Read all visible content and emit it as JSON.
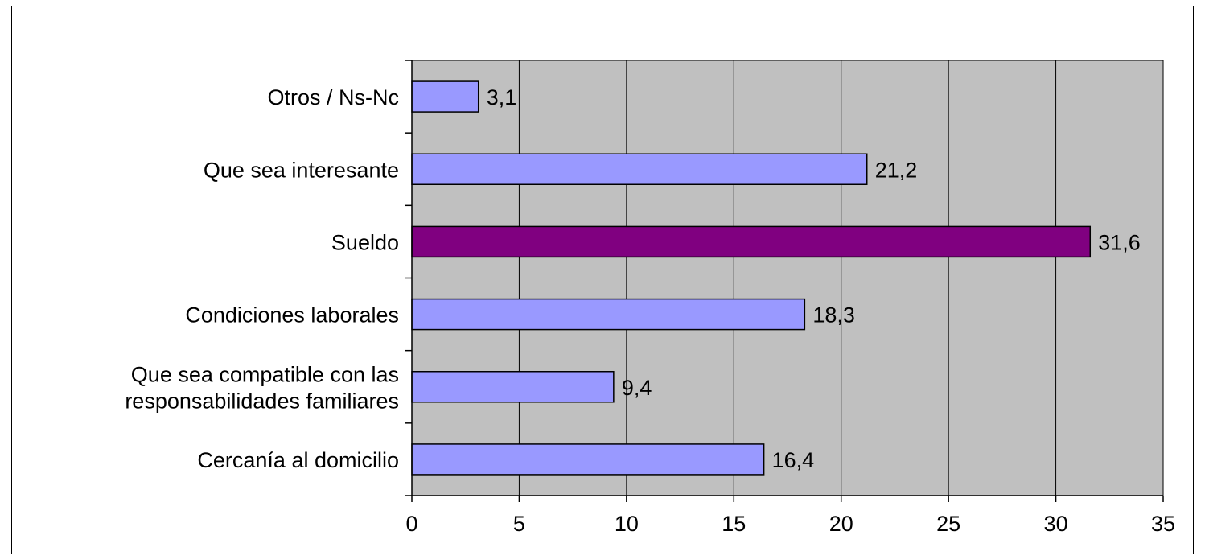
{
  "chart_data": {
    "type": "bar",
    "orientation": "horizontal",
    "title": "",
    "xlabel": "",
    "ylabel": "",
    "categories": [
      "Otros / Ns-Nc",
      "Que sea interesante",
      "Sueldo",
      "Condiciones laborales",
      "Que sea compatible con las responsabilidades familiares",
      "Cercanía al domicilio"
    ],
    "category_lines": [
      [
        "Otros / Ns-Nc"
      ],
      [
        "Que sea interesante"
      ],
      [
        "Sueldo"
      ],
      [
        "Condiciones laborales"
      ],
      [
        "Que sea compatible con las",
        "responsabilidades familiares"
      ],
      [
        "Cercanía al domicilio"
      ]
    ],
    "values": [
      3.1,
      21.2,
      31.6,
      18.3,
      9.4,
      16.4
    ],
    "data_labels": [
      "3,1",
      "21,2",
      "31,6",
      "18,3",
      "9,4",
      "16,4"
    ],
    "xlim": [
      0,
      35
    ],
    "x_ticks": [
      0,
      5,
      10,
      15,
      20,
      25,
      30,
      35
    ],
    "x_tick_labels": [
      "0",
      "5",
      "10",
      "15",
      "20",
      "25",
      "30",
      "35"
    ],
    "grid": true,
    "legend": "none",
    "colors": {
      "plot_background": "#c0c0c0",
      "bar_default": "#9999ff",
      "bar_highlight": "#800080",
      "gridline": "#000000",
      "bar_border": "#000000"
    },
    "highlight_category": "Sueldo"
  }
}
